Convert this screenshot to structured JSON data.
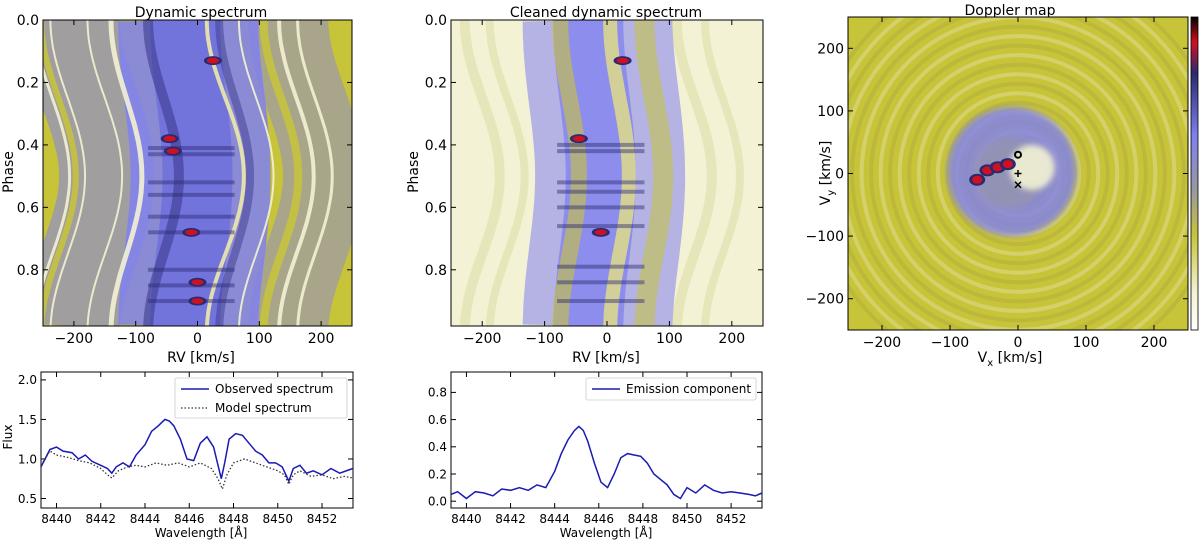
{
  "colors": {
    "yellow": "#c8c43a",
    "pale": "#f3f2d4",
    "blue": "#8080f0",
    "dark": "#2a2a70",
    "red": "#d01020",
    "line_blue": "#1a1ab4",
    "model": "#333333"
  },
  "chart_data": [
    {
      "id": "dynamic",
      "type": "heatmap",
      "title": "Dynamic spectrum",
      "xlabel": "RV [km/s]",
      "ylabel": "Phase",
      "xlim": [
        -250,
        250
      ],
      "ylim": [
        0.0,
        0.98
      ],
      "y_inverted": true,
      "xticks": [
        -200,
        -100,
        0,
        100,
        200
      ],
      "xtick_labels": [
        "−200",
        "−100",
        "0",
        "100",
        "200"
      ],
      "yticks": [
        0.0,
        0.2,
        0.4,
        0.6,
        0.8
      ],
      "ytick_labels": [
        "0.0",
        "0.2",
        "0.4",
        "0.6",
        "0.8"
      ],
      "red_spots": [
        {
          "rv": -45,
          "phase": 0.38
        },
        {
          "rv": -40,
          "phase": 0.42
        },
        {
          "rv": 25,
          "phase": 0.13
        },
        {
          "rv": -10,
          "phase": 0.68
        },
        {
          "rv": 0,
          "phase": 0.84
        },
        {
          "rv": 0,
          "phase": 0.9
        }
      ]
    },
    {
      "id": "cleaned",
      "type": "heatmap",
      "title": "Cleaned dynamic spectrum",
      "xlabel": "RV [km/s]",
      "ylabel": "Phase",
      "xlim": [
        -250,
        250
      ],
      "ylim": [
        0.0,
        0.98
      ],
      "y_inverted": true,
      "xticks": [
        -200,
        -100,
        0,
        100,
        200
      ],
      "xtick_labels": [
        "−200",
        "−100",
        "0",
        "100",
        "200"
      ],
      "yticks": [
        0.0,
        0.2,
        0.4,
        0.6,
        0.8
      ],
      "ytick_labels": [
        "0.0",
        "0.2",
        "0.4",
        "0.6",
        "0.8"
      ],
      "red_spots": [
        {
          "rv": -45,
          "phase": 0.38
        },
        {
          "rv": 25,
          "phase": 0.13
        },
        {
          "rv": -10,
          "phase": 0.68
        }
      ]
    },
    {
      "id": "doppler",
      "type": "heatmap",
      "title": "Doppler map",
      "xlabel_main": "V",
      "xlabel_sub": "x",
      "xlabel_unit": " [km/s]",
      "ylabel_main": "V",
      "ylabel_sub": "y",
      "ylabel_unit": " [km/s]",
      "xlim": [
        -250,
        250
      ],
      "ylim": [
        -250,
        250
      ],
      "xticks": [
        -200,
        -100,
        0,
        100,
        200
      ],
      "xtick_labels": [
        "−200",
        "−100",
        "0",
        "100",
        "200"
      ],
      "yticks": [
        -200,
        -100,
        0,
        100,
        200
      ],
      "ytick_labels": [
        "−200",
        "−100",
        "0",
        "100",
        "200"
      ],
      "red_spots": [
        {
          "vx": -60,
          "vy": -10
        },
        {
          "vx": -45,
          "vy": 5
        },
        {
          "vx": -30,
          "vy": 10
        },
        {
          "vx": -15,
          "vy": 15
        }
      ],
      "markers": [
        {
          "symbol": "o",
          "vx": 0,
          "vy": 30
        },
        {
          "symbol": "+",
          "vx": 0,
          "vy": 0
        },
        {
          "symbol": "x",
          "vx": 0,
          "vy": -18
        }
      ]
    },
    {
      "id": "flux",
      "type": "line",
      "xlabel": "Wavelength [Å]",
      "ylabel": "Flux",
      "xlim": [
        8439.3,
        8453.4
      ],
      "ylim": [
        0.38,
        2.1
      ],
      "xticks": [
        8440,
        8442,
        8444,
        8446,
        8448,
        8450,
        8452
      ],
      "xtick_labels": [
        "8440",
        "8442",
        "8444",
        "8446",
        "8448",
        "8450",
        "8452"
      ],
      "yticks": [
        0.5,
        1.0,
        1.5,
        2.0
      ],
      "ytick_labels": [
        "0.5",
        "1.0",
        "1.5",
        "2.0"
      ],
      "legend": [
        "Observed spectrum",
        "Model spectrum"
      ],
      "series": [
        {
          "name": "Observed spectrum",
          "style": "solid",
          "x": [
            8439.3,
            8439.7,
            8440.0,
            8440.3,
            8440.7,
            8441.0,
            8441.3,
            8441.6,
            8442.0,
            8442.3,
            8442.5,
            8442.7,
            8443.0,
            8443.3,
            8443.6,
            8444.0,
            8444.3,
            8444.6,
            8444.9,
            8445.1,
            8445.3,
            8445.6,
            8445.9,
            8446.2,
            8446.5,
            8446.8,
            8447.1,
            8447.3,
            8447.45,
            8447.6,
            8447.8,
            8448.1,
            8448.4,
            8448.7,
            8449.0,
            8449.3,
            8449.6,
            8449.9,
            8450.2,
            8450.5,
            8450.7,
            8451.0,
            8451.3,
            8451.6,
            8452.0,
            8452.4,
            8452.8,
            8453.2,
            8453.4
          ],
          "y": [
            0.9,
            1.12,
            1.15,
            1.1,
            1.08,
            1.0,
            1.05,
            0.97,
            0.92,
            0.88,
            0.82,
            0.9,
            0.95,
            0.9,
            1.05,
            1.18,
            1.35,
            1.42,
            1.5,
            1.48,
            1.42,
            1.25,
            1.0,
            0.98,
            1.2,
            1.28,
            1.15,
            0.92,
            0.75,
            0.95,
            1.25,
            1.32,
            1.3,
            1.2,
            1.1,
            1.05,
            0.95,
            0.95,
            0.9,
            0.72,
            0.88,
            0.92,
            0.82,
            0.85,
            0.8,
            0.88,
            0.82,
            0.86,
            0.88
          ]
        },
        {
          "name": "Model spectrum",
          "style": "dotted",
          "x": [
            8439.3,
            8439.7,
            8440.0,
            8440.5,
            8441.0,
            8441.5,
            8442.0,
            8442.3,
            8442.5,
            8442.8,
            8443.2,
            8443.6,
            8444.0,
            8444.5,
            8445.0,
            8445.5,
            8446.0,
            8446.5,
            8447.0,
            8447.3,
            8447.5,
            8447.7,
            8448.0,
            8448.5,
            8449.0,
            8449.5,
            8450.0,
            8450.3,
            8450.5,
            8450.7,
            8451.0,
            8451.5,
            8452.0,
            8452.5,
            8453.0,
            8453.4
          ],
          "y": [
            0.92,
            1.1,
            1.05,
            1.02,
            0.98,
            0.95,
            0.88,
            0.8,
            0.76,
            0.85,
            0.9,
            0.92,
            0.9,
            0.95,
            0.92,
            0.95,
            0.9,
            0.95,
            0.88,
            0.75,
            0.62,
            0.8,
            0.95,
            1.0,
            0.95,
            0.9,
            0.85,
            0.8,
            0.68,
            0.8,
            0.85,
            0.78,
            0.8,
            0.75,
            0.78,
            0.76
          ]
        }
      ]
    },
    {
      "id": "emission",
      "type": "line",
      "xlabel": "Wavelength [Å]",
      "ylabel": "",
      "xlim": [
        8439.3,
        8453.4
      ],
      "ylim": [
        -0.05,
        0.95
      ],
      "xticks": [
        8440,
        8442,
        8444,
        8446,
        8448,
        8450,
        8452
      ],
      "xtick_labels": [
        "8440",
        "8442",
        "8444",
        "8446",
        "8448",
        "8450",
        "8452"
      ],
      "yticks": [
        0.0,
        0.2,
        0.4,
        0.6,
        0.8
      ],
      "ytick_labels": [
        "0.0",
        "0.2",
        "0.4",
        "0.6",
        "0.8"
      ],
      "legend": [
        "Emission component"
      ],
      "series": [
        {
          "name": "Emission component",
          "style": "solid",
          "x": [
            8439.3,
            8439.6,
            8440.0,
            8440.4,
            8440.8,
            8441.2,
            8441.6,
            8442.0,
            8442.4,
            8442.8,
            8443.2,
            8443.6,
            8444.0,
            8444.3,
            8444.6,
            8444.9,
            8445.1,
            8445.3,
            8445.5,
            8445.8,
            8446.1,
            8446.4,
            8446.7,
            8447.0,
            8447.3,
            8447.6,
            8447.9,
            8448.2,
            8448.5,
            8448.8,
            8449.1,
            8449.4,
            8449.7,
            8450.0,
            8450.4,
            8450.8,
            8451.2,
            8451.6,
            8452.0,
            8452.4,
            8452.8,
            8453.1,
            8453.4
          ],
          "y": [
            0.05,
            0.07,
            0.02,
            0.07,
            0.06,
            0.04,
            0.09,
            0.08,
            0.1,
            0.08,
            0.12,
            0.1,
            0.22,
            0.35,
            0.45,
            0.52,
            0.55,
            0.52,
            0.44,
            0.28,
            0.14,
            0.1,
            0.2,
            0.32,
            0.35,
            0.34,
            0.33,
            0.28,
            0.2,
            0.16,
            0.12,
            0.05,
            0.02,
            0.1,
            0.06,
            0.12,
            0.08,
            0.06,
            0.07,
            0.06,
            0.05,
            0.04,
            0.06
          ]
        }
      ]
    }
  ]
}
